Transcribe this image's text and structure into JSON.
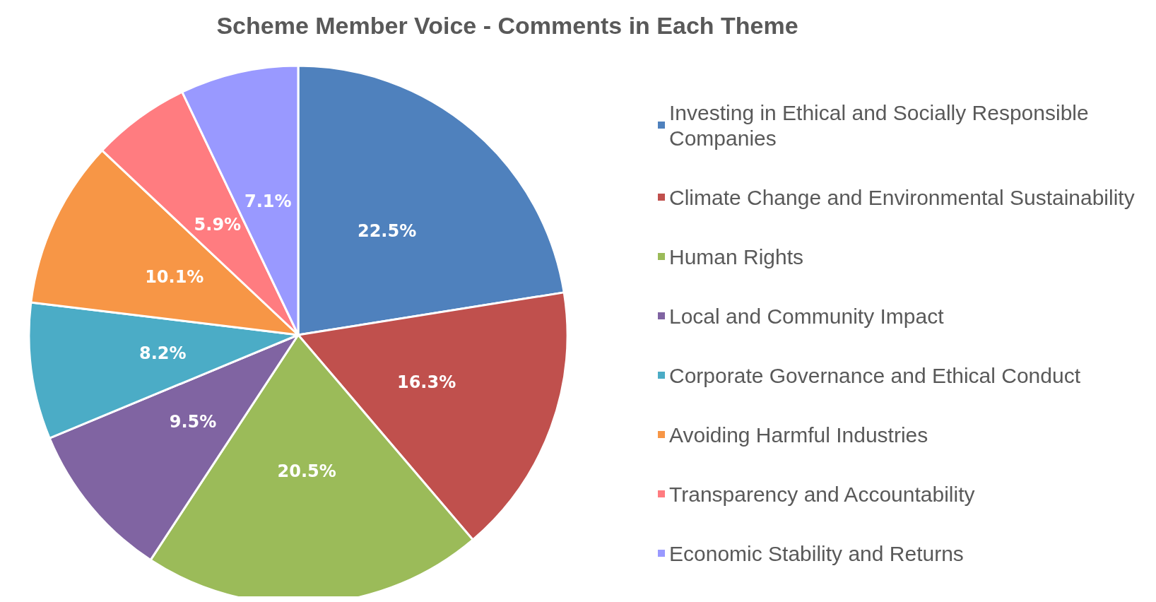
{
  "chart_data": {
    "type": "pie",
    "title": "Scheme Member Voice - Comments in Each Theme",
    "categories": [
      "Investing in Ethical and Socially Responsible Companies",
      "Climate Change and Environmental Sustainability",
      "Human Rights",
      "Local and Community Impact",
      "Corporate Governance and Ethical Conduct",
      "Avoiding Harmful Industries",
      "Transparency and Accountability",
      "Economic Stability and Returns"
    ],
    "values": [
      22.5,
      16.3,
      20.5,
      9.5,
      8.2,
      10.1,
      5.9,
      7.1
    ],
    "value_labels": [
      "22.5%",
      "16.3%",
      "20.5%",
      "9.5%",
      "8.2%",
      "10.1%",
      "5.9%",
      "7.1%"
    ],
    "colors": [
      "#4f81bd",
      "#c0504d",
      "#9bbb59",
      "#8064a2",
      "#4bacc6",
      "#f79646",
      "#ff7c80",
      "#9999ff"
    ],
    "legend": "right"
  }
}
